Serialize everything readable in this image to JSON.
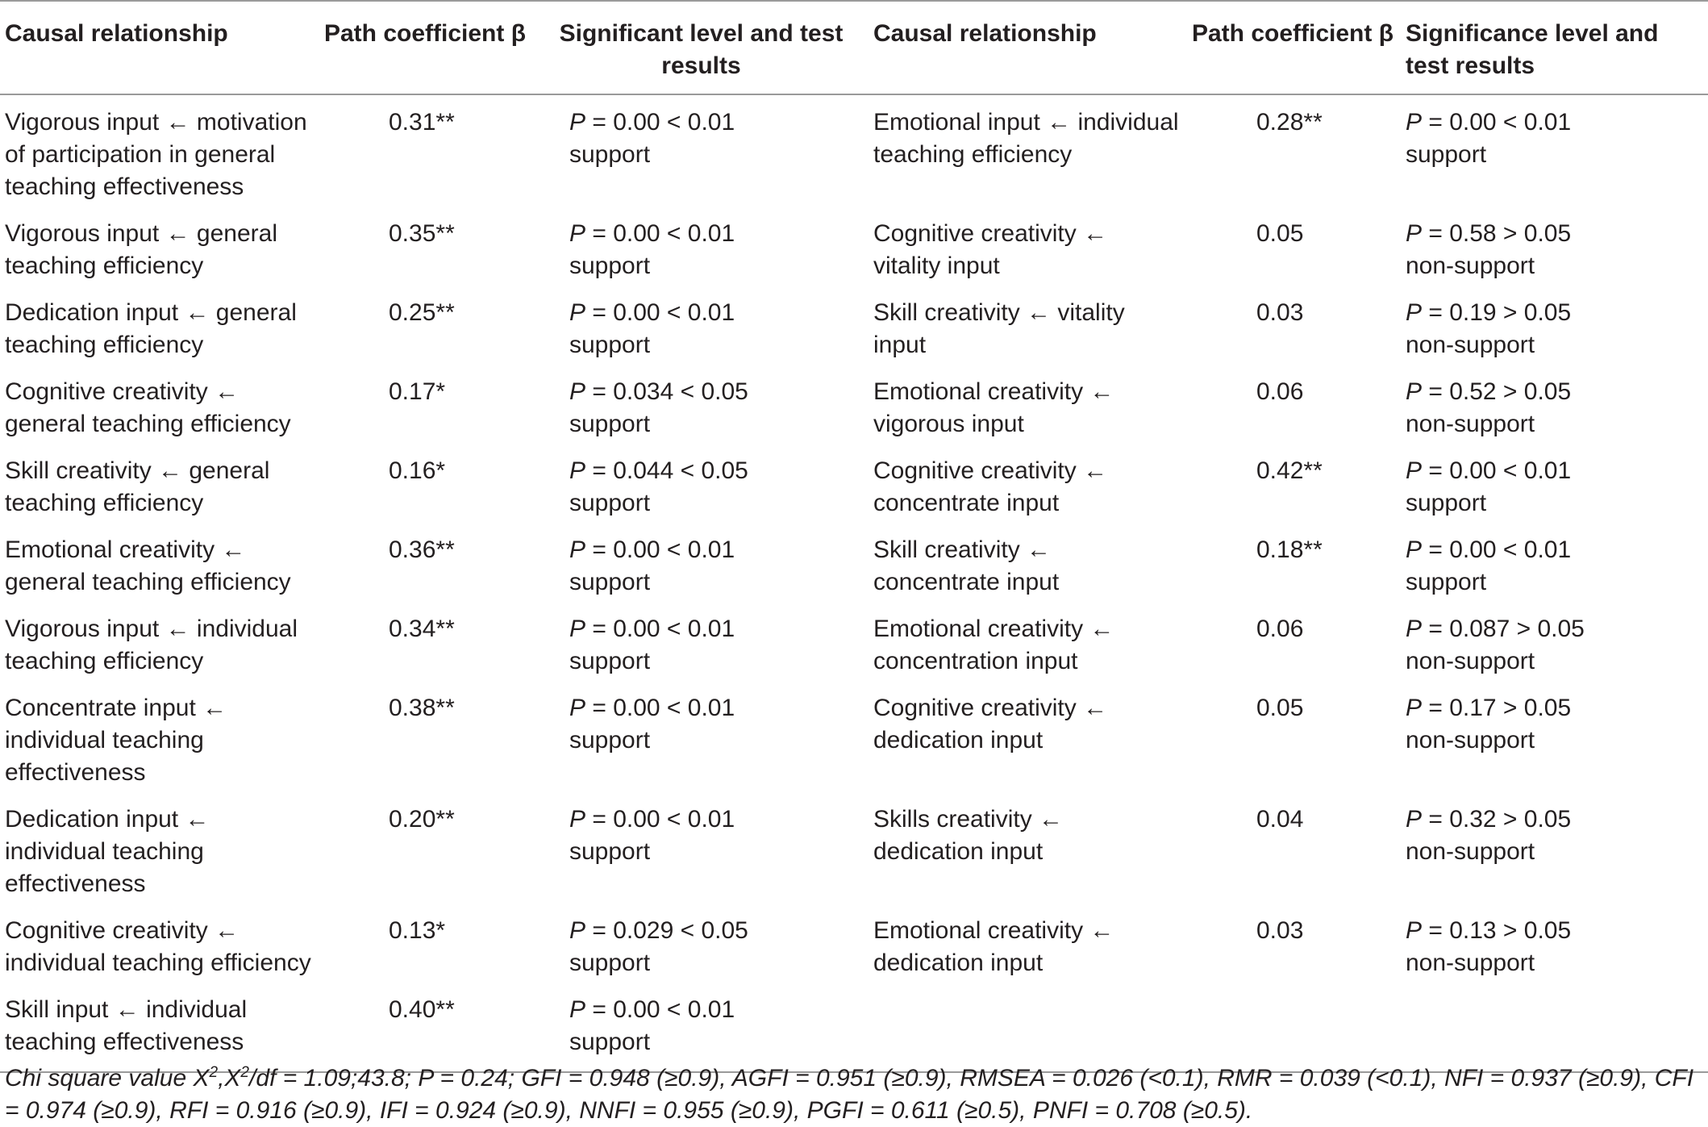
{
  "table": {
    "headers": [
      "Causal relationship",
      "Path coefficient β",
      "Significant level and test results",
      "Causal relationship",
      "Path coefficient β",
      "Significance level and test results"
    ],
    "rows": [
      {
        "left": {
          "relation": "Vigorous input ← motivation of participation in general teaching effectiveness",
          "coef": "0.31**",
          "p_label": "P",
          "p_value": " = 0.00 < 0.01",
          "result": "support"
        },
        "right": {
          "relation": "Emotional input ← individual teaching efficiency",
          "coef": "0.28**",
          "p_label": "P",
          "p_value": " = 0.00 < 0.01",
          "result": "support"
        }
      },
      {
        "left": {
          "relation": "Vigorous input ← general teaching efficiency",
          "coef": "0.35**",
          "p_label": "P",
          "p_value": " = 0.00 < 0.01",
          "result": "support"
        },
        "right": {
          "relation": "Cognitive creativity ← vitality input",
          "coef": "0.05",
          "p_label": "P",
          "p_value": " = 0.58 > 0.05",
          "result": "non-support"
        }
      },
      {
        "left": {
          "relation": "Dedication input ← general teaching efficiency",
          "coef": "0.25**",
          "p_label": "P",
          "p_value": " = 0.00 < 0.01",
          "result": "support"
        },
        "right": {
          "relation": "Skill creativity ← vitality input",
          "coef": "0.03",
          "p_label": "P",
          "p_value": " = 0.19 > 0.05",
          "result": "non-support"
        }
      },
      {
        "left": {
          "relation": "Cognitive creativity ← general teaching efficiency",
          "coef": "0.17*",
          "p_label": "P",
          "p_value": " = 0.034 < 0.05",
          "result": "support"
        },
        "right": {
          "relation": "Emotional creativity ← vigorous input",
          "coef": "0.06",
          "p_label": "P",
          "p_value": " = 0.52 > 0.05",
          "result": "non-support"
        }
      },
      {
        "left": {
          "relation": "Skill creativity ← general teaching efficiency",
          "coef": "0.16*",
          "p_label": "P",
          "p_value": " = 0.044 < 0.05",
          "result": "support"
        },
        "right": {
          "relation": "Cognitive creativity ← concentrate input",
          "coef": "0.42**",
          "p_label": "P",
          "p_value": " = 0.00 < 0.01",
          "result": "support"
        }
      },
      {
        "left": {
          "relation": "Emotional creativity ← general teaching efficiency",
          "coef": "0.36**",
          "p_label": "P",
          "p_value": " = 0.00 < 0.01",
          "result": "support"
        },
        "right": {
          "relation": "Skill creativity ← concentrate input",
          "coef": "0.18**",
          "p_label": "P",
          "p_value": " = 0.00 < 0.01",
          "result": "support"
        }
      },
      {
        "left": {
          "relation": "Vigorous input ← individual teaching efficiency",
          "coef": "0.34**",
          "p_label": "P",
          "p_value": " = 0.00 < 0.01",
          "result": "support"
        },
        "right": {
          "relation": "Emotional creativity ← concentration input",
          "coef": "0.06",
          "p_label": "P",
          "p_value": " = 0.087 > 0.05",
          "result": "non-support"
        }
      },
      {
        "left": {
          "relation": "Concentrate input ← individual teaching effectiveness",
          "coef": "0.38**",
          "p_label": "P",
          "p_value": " = 0.00 < 0.01",
          "result": "support"
        },
        "right": {
          "relation": "Cognitive creativity ← dedication input",
          "coef": "0.05",
          "p_label": "P",
          "p_value": " = 0.17 > 0.05",
          "result": "non-support"
        }
      },
      {
        "left": {
          "relation": "Dedication input ← individual teaching effectiveness",
          "coef": "0.20**",
          "p_label": "P",
          "p_value": " = 0.00 < 0.01",
          "result": "support"
        },
        "right": {
          "relation": "Skills creativity ← dedication input",
          "coef": "0.04",
          "p_label": "P",
          "p_value": " = 0.32 > 0.05",
          "result": "non-support"
        }
      },
      {
        "left": {
          "relation": "Cognitive creativity ← individual teaching efficiency",
          "coef": "0.13*",
          "p_label": "P",
          "p_value": " = 0.029 < 0.05",
          "result": "support"
        },
        "right": {
          "relation": "Emotional creativity ← dedication input",
          "coef": "0.03",
          "p_label": "P",
          "p_value": " = 0.13 > 0.05",
          "result": "non-support"
        }
      },
      {
        "left": {
          "relation": "Skill input ← individual teaching effectiveness",
          "coef": "0.40**",
          "p_label": "P",
          "p_value": " = 0.00 < 0.01",
          "result": "support"
        },
        "right": {
          "relation": "",
          "coef": "",
          "p_label": "",
          "p_value": "",
          "result": ""
        }
      }
    ],
    "note": {
      "prefix": "Chi square value X",
      "sup1": "2",
      "mid": ",X",
      "sup2": "2",
      "rest": "/df = 1.09;43.8; P = 0.24; GFI = 0.948 (≥0.9), AGFI = 0.951 (≥0.9), RMSEA = 0.026 (<0.1), RMR = 0.039 (<0.1), NFI = 0.937 (≥0.9), CFI = 0.974 (≥0.9), RFI = 0.916 (≥0.9), IFI = 0.924 (≥0.9), NNFI = 0.955 (≥0.9), PGFI = 0.611 (≥0.5), PNFI = 0.708 (≥0.5)."
    }
  }
}
